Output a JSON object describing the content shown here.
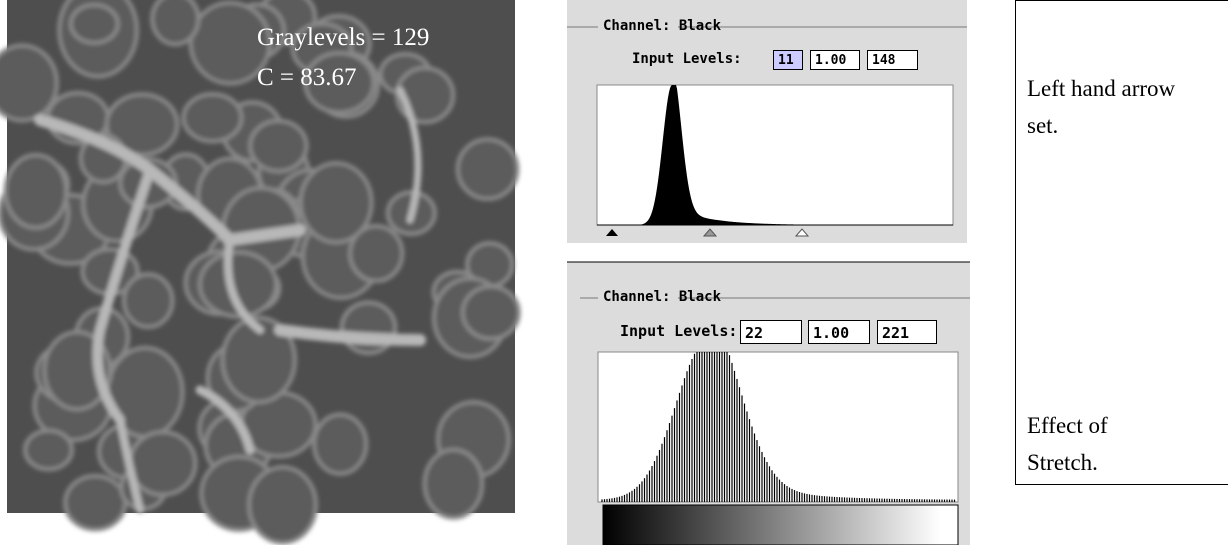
{
  "image": {
    "annotations": [
      "Graylevels = 129",
      "C = 83.67"
    ]
  },
  "panels": [
    {
      "channel": "Channel: Black",
      "input_label": "Input Levels:",
      "inputs": [
        "11",
        "1.00",
        "148"
      ]
    },
    {
      "channel": "Channel: Black",
      "input_label": "Input Levels:",
      "inputs": [
        "22",
        "1.00",
        "221"
      ]
    }
  ],
  "notes": [
    "Left hand arrow set.",
    "Effect of Stretch."
  ]
}
